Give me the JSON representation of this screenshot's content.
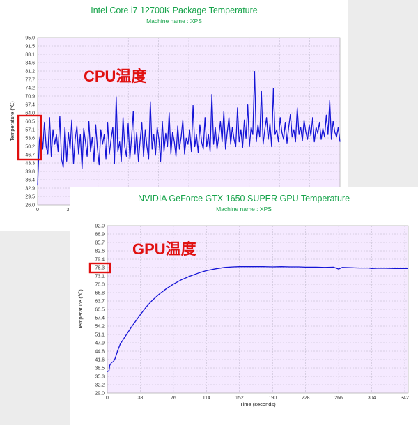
{
  "colors": {
    "title": "#16a34a",
    "series": "#1414d6",
    "plot_background": "#f5e9ff",
    "annotation": "#e01010"
  },
  "chart_data": [
    {
      "type": "line",
      "title": "Intel Core i7 12700K Package Temperature",
      "subtitle": "Machine name : XPS",
      "ylabel": "Temperature (℃)",
      "xlabel": "",
      "ylim": [
        26.0,
        95.0
      ],
      "y_ticks": [
        "95.0",
        "91.5",
        "88.1",
        "84.6",
        "81.2",
        "77.7",
        "74.2",
        "70.9",
        "67.4",
        "64.0",
        "60.5",
        "57.1",
        "53.6",
        "50.2",
        "46.7",
        "43.3",
        "39.8",
        "36.4",
        "32.9",
        "29.5",
        "26.0"
      ],
      "x_ticks_visible": [
        "0",
        "3"
      ],
      "annotation": "CPU温度",
      "highlight_range": [
        46.7,
        60.5
      ],
      "grid": true,
      "series": [
        {
          "values": [
            34.0,
            52.5,
            57.0,
            49.0,
            60.0,
            50.0,
            47.0,
            62.0,
            46.0,
            57.0,
            51.0,
            55.0,
            48.0,
            62.5,
            45.0,
            41.5,
            58.0,
            44.0,
            56.0,
            49.0,
            61.0,
            43.0,
            53.0,
            58.5,
            47.0,
            55.0,
            41.0,
            57.5,
            52.0,
            46.0,
            60.5,
            48.0,
            54.0,
            44.0,
            59.0,
            49.5,
            42.5,
            57.0,
            51.0,
            55.0,
            45.0,
            60.0,
            47.0,
            53.0,
            58.0,
            43.0,
            70.5,
            48.0,
            52.0,
            44.0,
            62.0,
            50.0,
            46.0,
            59.5,
            45.0,
            54.0,
            64.5,
            47.0,
            56.0,
            44.0,
            52.5,
            60.0,
            46.0,
            57.0,
            50.0,
            45.0,
            68.5,
            49.0,
            55.0,
            46.5,
            58.0,
            53.0,
            44.0,
            60.5,
            48.0,
            55.5,
            50.0,
            64.0,
            47.0,
            56.0,
            52.0,
            46.0,
            58.5,
            49.0,
            54.0,
            61.0,
            47.0,
            53.5,
            51.0,
            57.0,
            48.0,
            67.0,
            50.0,
            55.0,
            47.5,
            59.0,
            52.0,
            49.0,
            62.0,
            50.0,
            55.0,
            48.0,
            71.5,
            51.0,
            58.0,
            49.0,
            54.0,
            60.5,
            52.0,
            64.5,
            49.0,
            56.0,
            62.0,
            51.0,
            58.0,
            53.0,
            50.0,
            66.0,
            52.0,
            57.0,
            49.5,
            61.0,
            53.5,
            67.5,
            50.0,
            58.0,
            55.0,
            81.0,
            52.0,
            59.0,
            54.0,
            73.0,
            51.0,
            57.0,
            62.0,
            53.0,
            59.5,
            50.0,
            74.0,
            55.0,
            57.0,
            52.0,
            62.0,
            56.0,
            53.0,
            60.0,
            51.5,
            58.0,
            63.5,
            54.0,
            57.0,
            52.0,
            66.0,
            55.0,
            58.0,
            52.5,
            61.0,
            56.0,
            53.0,
            59.0,
            54.5,
            62.0,
            52.0,
            58.0,
            55.5,
            60.0,
            53.0,
            57.5,
            54.0,
            63.0,
            55.0,
            69.0,
            53.0,
            60.5,
            56.0,
            54.0,
            58.0,
            52.0
          ]
        }
      ]
    },
    {
      "type": "line",
      "title": "NVIDIA GeForce GTX 1650 SUPER GPU Temperature",
      "subtitle": "Machine name : XPS",
      "ylabel": "Temperature (℃)",
      "xlabel": "Time (seconds)",
      "xlim": [
        0,
        346
      ],
      "ylim": [
        29.0,
        92.0
      ],
      "y_ticks": [
        "92.0",
        "88.9",
        "85.7",
        "82.6",
        "79.4",
        "76.3",
        "73.1",
        "70.0",
        "66.8",
        "63.7",
        "60.5",
        "57.4",
        "54.2",
        "51.1",
        "47.9",
        "44.8",
        "41.6",
        "38.5",
        "35.3",
        "32.2",
        "29.0"
      ],
      "x_ticks": [
        "0",
        "38",
        "76",
        "114",
        "152",
        "190",
        "228",
        "266",
        "304",
        "342"
      ],
      "annotation": "GPU温度",
      "highlighted_tick": "76.3",
      "grid": true,
      "series": [
        {
          "x": [
            0,
            2,
            3,
            5,
            7,
            9,
            12,
            15,
            18,
            20,
            24,
            28,
            32,
            38,
            45,
            52,
            60,
            68,
            76,
            85,
            95,
            105,
            114,
            125,
            135,
            145,
            152,
            165,
            180,
            190,
            200,
            210,
            220,
            228,
            240,
            250,
            260,
            266,
            270,
            280,
            290,
            300,
            304,
            310,
            320,
            330,
            342,
            346
          ],
          "values": [
            37.0,
            37.5,
            39.5,
            40.5,
            40.8,
            42.0,
            45.0,
            47.5,
            49.0,
            50.0,
            52.0,
            54.0,
            55.8,
            58.5,
            61.5,
            64.0,
            66.3,
            68.3,
            70.0,
            71.6,
            73.0,
            74.2,
            75.1,
            75.8,
            76.3,
            76.5,
            76.6,
            76.6,
            76.6,
            76.5,
            76.6,
            76.5,
            76.5,
            76.4,
            76.4,
            76.3,
            76.4,
            75.7,
            76.3,
            76.2,
            76.1,
            76.1,
            75.9,
            76.0,
            76.0,
            75.9,
            75.9,
            75.9
          ]
        }
      ]
    }
  ]
}
